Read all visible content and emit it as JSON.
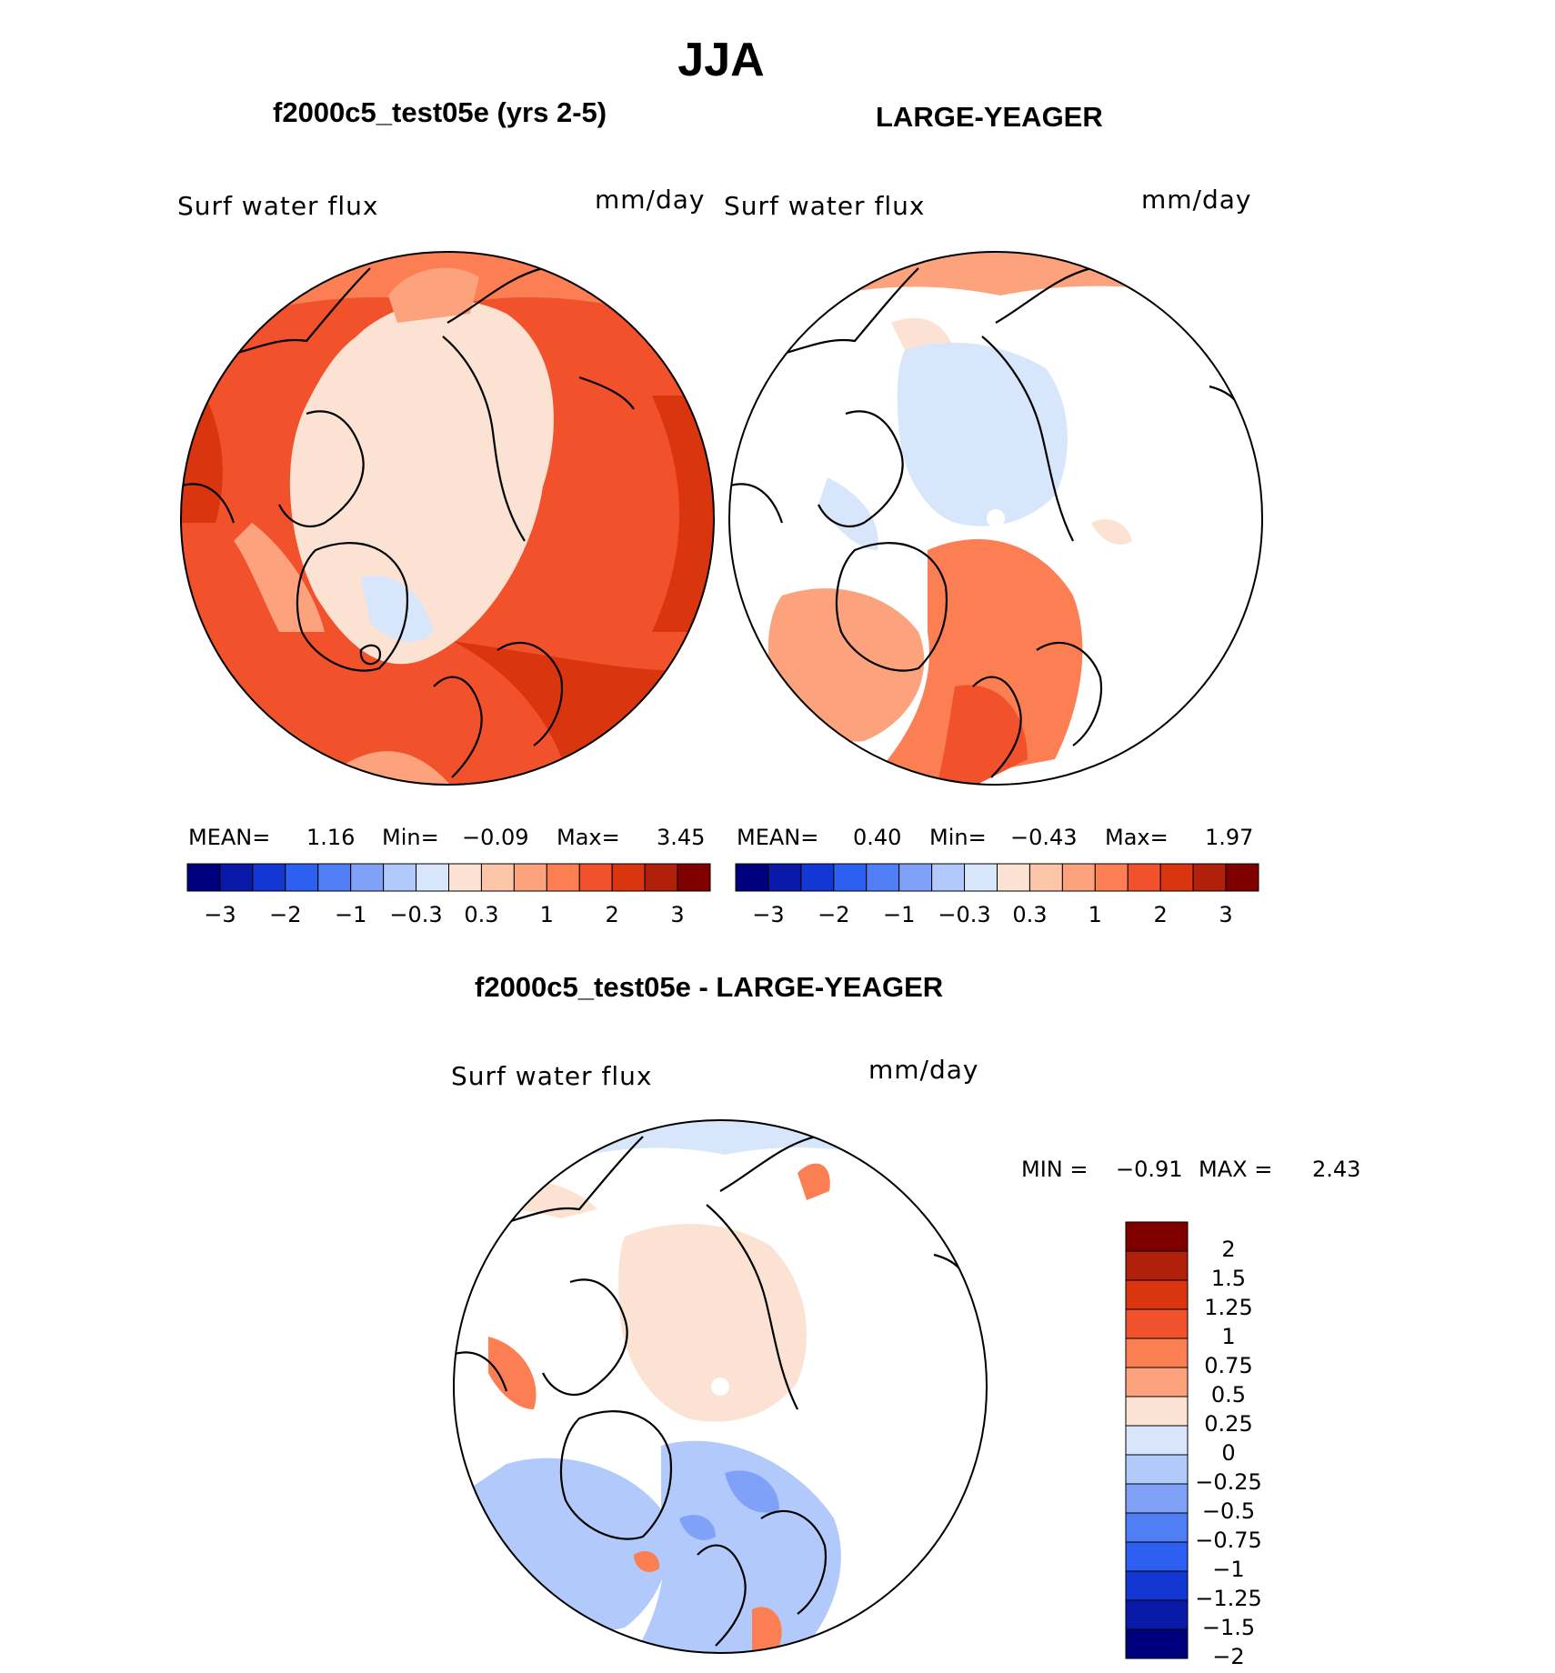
{
  "title": "JJA",
  "panels": [
    {
      "title": "f2000c5_test05e (yrs 2-5)",
      "field_label": "Surf water flux",
      "units": "mm/day",
      "stats": {
        "mean_label": "MEAN=",
        "mean": "1.16",
        "min_label": "Min=",
        "min": "−0.09",
        "max_label": "Max=",
        "max": "3.45"
      }
    },
    {
      "title": "LARGE-YEAGER",
      "field_label": "Surf water flux",
      "units": "mm/day",
      "stats": {
        "mean_label": "MEAN=",
        "mean": "0.40",
        "min_label": "Min=",
        "min": "−0.43",
        "max_label": "Max=",
        "max": "1.97"
      }
    },
    {
      "title": "f2000c5_test05e - LARGE-YEAGER",
      "field_label": "Surf water flux",
      "units": "mm/day",
      "stats": {
        "min_label": "MIN =",
        "min": "−0.91",
        "max_label": "MAX =",
        "max": "2.43"
      }
    }
  ],
  "colorbar_abs": {
    "colors": [
      "#00007f",
      "#0a1aa8",
      "#1337d2",
      "#2d5ff0",
      "#4f7ef5",
      "#7fa2f8",
      "#b2c9fb",
      "#d8e6fc",
      "#fbe2d2",
      "#fcc5a8",
      "#fca27d",
      "#fb7f53",
      "#f1512b",
      "#d9360f",
      "#b1200a",
      "#800000"
    ],
    "ticks": [
      "−3",
      "−2",
      "−1",
      "−0.3",
      "0.3",
      "1",
      "2",
      "3"
    ]
  },
  "colorbar_diff": {
    "colors": [
      "#800000",
      "#b1200a",
      "#d9360f",
      "#f1512b",
      "#fb7f53",
      "#fca27d",
      "#fbe2d2",
      "#d8e6fc",
      "#b2c9fb",
      "#7fa2f8",
      "#4f7ef5",
      "#2d5ff0",
      "#1337d2",
      "#0a1aa8",
      "#00007f"
    ],
    "ticks": [
      "2",
      "1.5",
      "1.25",
      "1",
      "0.75",
      "0.5",
      "0.25",
      "0",
      "−0.25",
      "−0.5",
      "−0.75",
      "−1",
      "−1.25",
      "−1.5",
      "−2"
    ]
  },
  "map_colors": {
    "land": "#ffffff",
    "coast": "#000000"
  }
}
